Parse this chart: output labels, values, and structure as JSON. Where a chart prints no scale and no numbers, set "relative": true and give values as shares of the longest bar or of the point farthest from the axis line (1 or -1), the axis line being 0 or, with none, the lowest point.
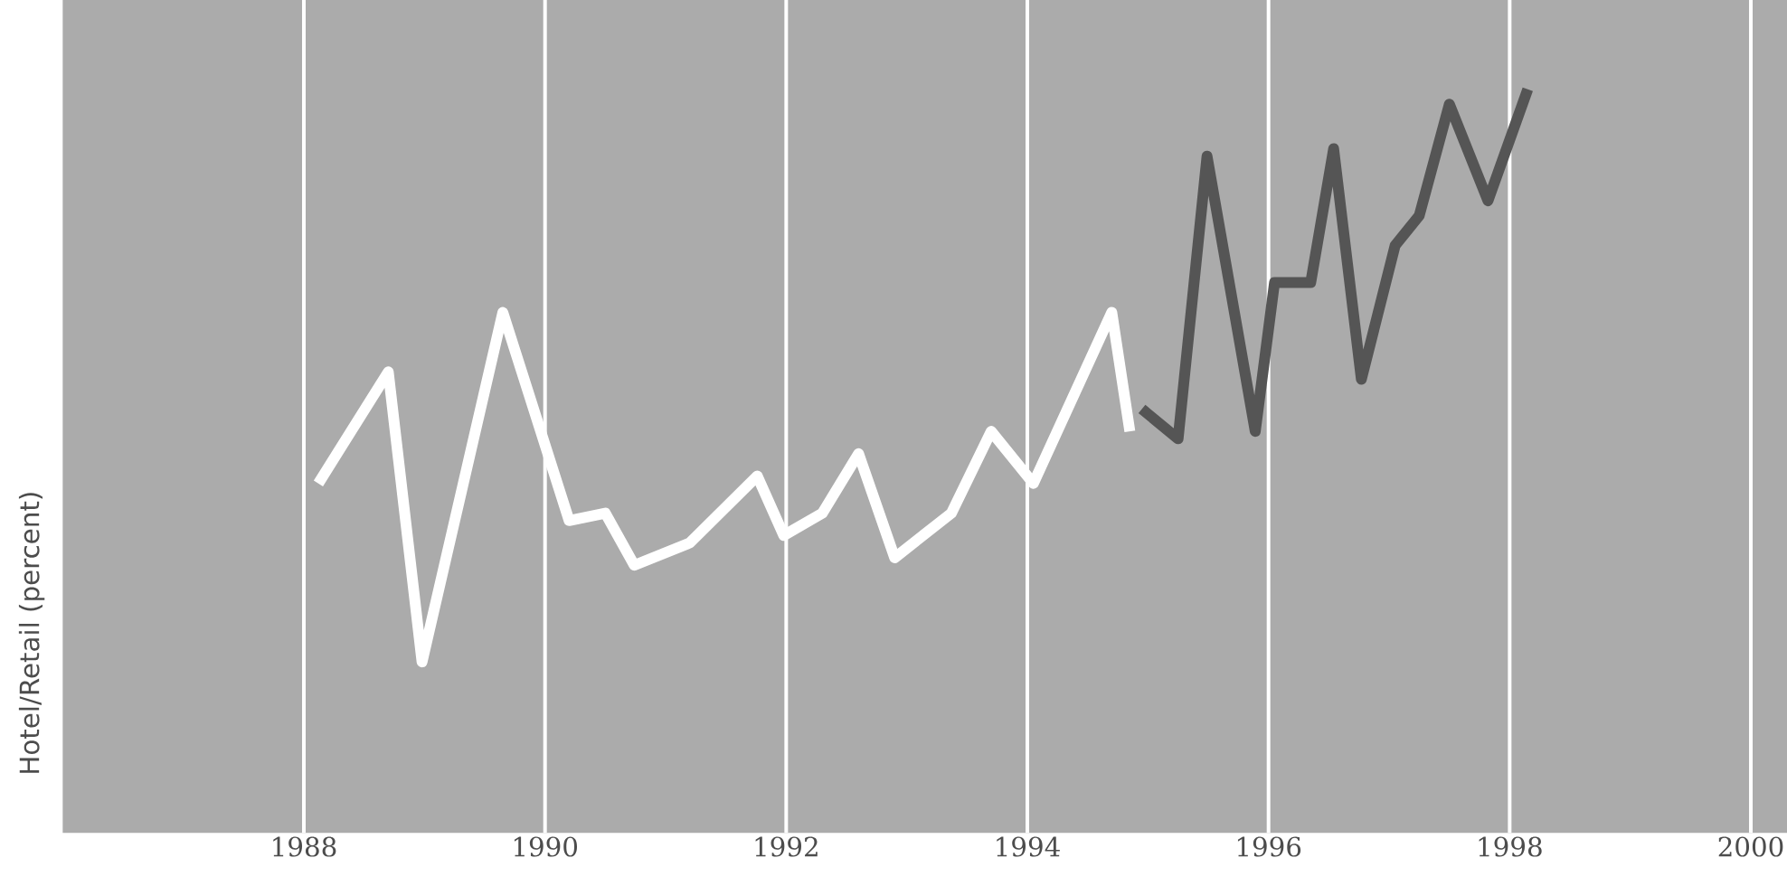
{
  "chart_data": {
    "type": "line",
    "ylabel": "Hotel/Retail (percent)",
    "relative": true,
    "xlim": [
      1986,
      2000.3
    ],
    "xticks": [
      1988,
      1990,
      1992,
      1994,
      1996,
      1998,
      2000
    ],
    "grid": "x",
    "marker": "none",
    "line_style": "solid",
    "series": [
      {
        "color": "#ffffff",
        "x": [
          1988.12,
          1988.7,
          1988.98,
          1989.65,
          1990.2,
          1990.5,
          1990.74,
          1991.2,
          1991.76,
          1991.98,
          1992.3,
          1992.6,
          1992.9,
          1993.37,
          1993.7,
          1994.05,
          1994.7,
          1994.85
        ],
        "values": [
          0.47,
          0.62,
          0.23,
          0.7,
          0.42,
          0.43,
          0.36,
          0.39,
          0.48,
          0.4,
          0.43,
          0.51,
          0.37,
          0.43,
          0.54,
          0.47,
          0.7,
          0.54
        ]
      },
      {
        "color": "#555555",
        "x": [
          1994.95,
          1995.25,
          1995.49,
          1995.89,
          1996.05,
          1996.35,
          1996.54,
          1996.77,
          1997.05,
          1997.25,
          1997.5,
          1997.82,
          1998.15
        ],
        "values": [
          0.57,
          0.53,
          0.91,
          0.54,
          0.74,
          0.74,
          0.92,
          0.61,
          0.79,
          0.83,
          0.98,
          0.85,
          1
        ]
      }
    ]
  }
}
